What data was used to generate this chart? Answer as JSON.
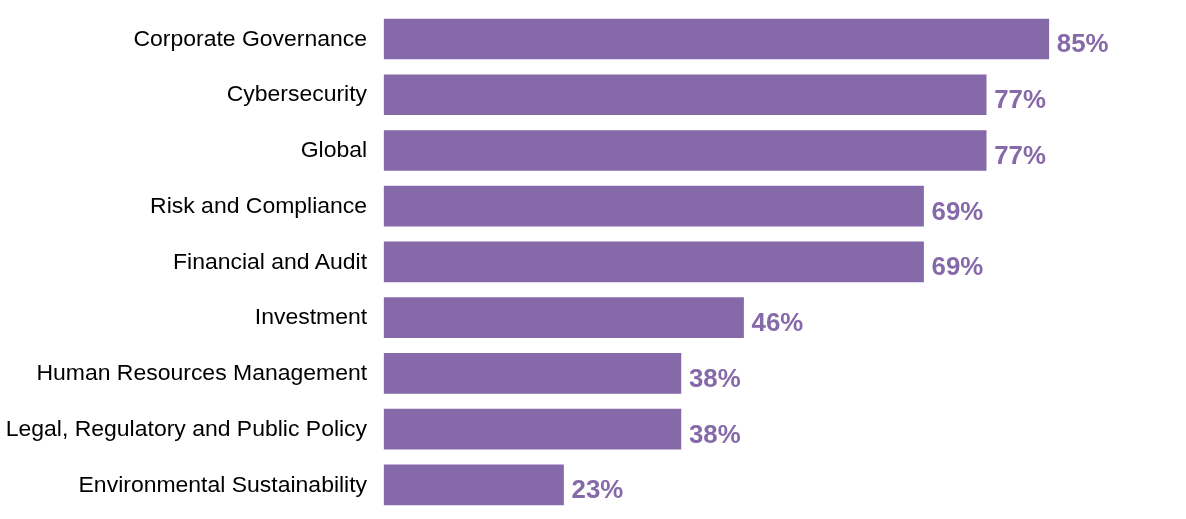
{
  "chart_data": {
    "type": "bar",
    "orientation": "horizontal",
    "categories": [
      "Corporate Governance",
      "Cybersecurity",
      "Global",
      "Risk and Compliance",
      "Financial and Audit",
      "Investment",
      "Human Resources Management",
      "Legal, Regulatory and Public Policy",
      "Environmental Sustainability"
    ],
    "values": [
      85,
      77,
      77,
      69,
      69,
      46,
      38,
      38,
      23
    ],
    "value_labels": [
      "85%",
      "77%",
      "77%",
      "69%",
      "69%",
      "46%",
      "38%",
      "38%",
      "23%"
    ],
    "color": "#8669a8"
  }
}
